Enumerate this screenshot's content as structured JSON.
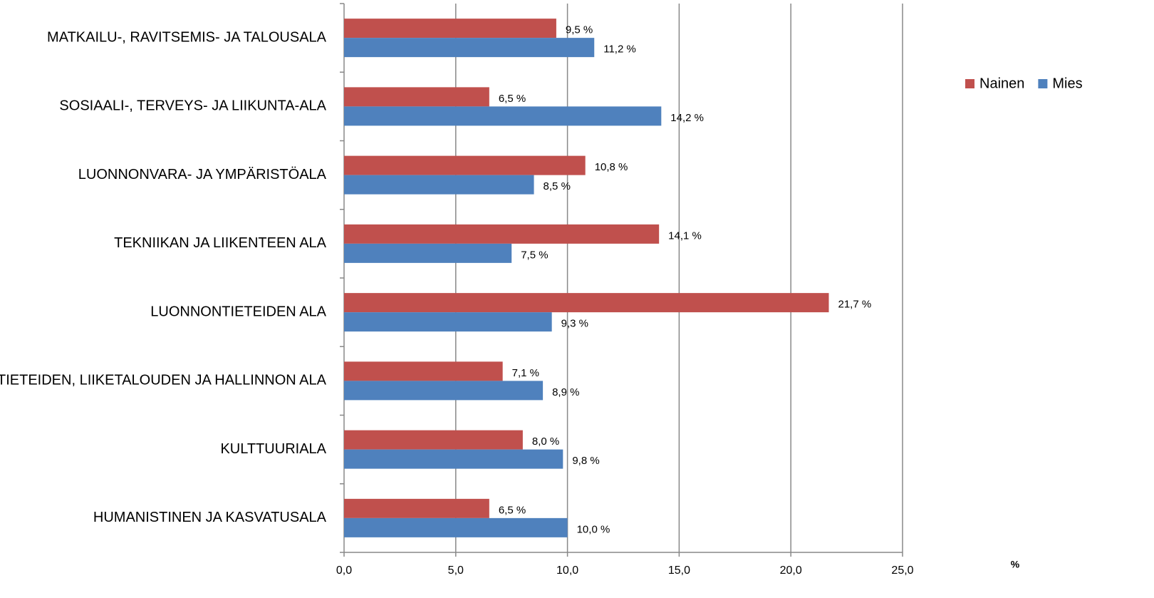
{
  "chart_data": {
    "type": "bar",
    "orientation": "horizontal",
    "categories": [
      "MATKAILU-, RAVITSEMIS- JA TALOUSALA",
      "SOSIAALI-, TERVEYS- JA LIIKUNTA-ALA",
      "LUONNONVARA- JA YMPÄRISTÖALA",
      "TEKNIIKAN JA LIIKENTEEN ALA",
      "LUONNONTIETEIDEN ALA",
      "YHTEISKUNTATIETEIDEN, LIIKETALOUDEN JA HALLINNON ALA",
      "KULTTUURIALA",
      "HUMANISTINEN JA KASVATUSALA"
    ],
    "series": [
      {
        "name": "Nainen",
        "color": "#c0504d",
        "values": [
          9.5,
          6.5,
          10.8,
          14.1,
          21.7,
          7.1,
          8.0,
          6.5
        ],
        "value_labels": [
          "9,5 %",
          "6,5 %",
          "10,8 %",
          "14,1 %",
          "21,7 %",
          "7,1 %",
          "8,0 %",
          "6,5 %"
        ]
      },
      {
        "name": "Mies",
        "color": "#4f81bd",
        "values": [
          11.2,
          14.2,
          8.5,
          7.5,
          9.3,
          8.9,
          9.8,
          10.0
        ],
        "value_labels": [
          "11,2 %",
          "14,2 %",
          "8,5 %",
          "7,5 %",
          "9,3 %",
          "8,9 %",
          "9,8 %",
          "10,0 %"
        ]
      }
    ],
    "xlabel": "%",
    "xlim": [
      0,
      25
    ],
    "xticks": [
      {
        "value": 0,
        "label": "0,0"
      },
      {
        "value": 5,
        "label": "5,0"
      },
      {
        "value": 10,
        "label": "10,0"
      },
      {
        "value": 15,
        "label": "15,0"
      },
      {
        "value": 20,
        "label": "20,0"
      },
      {
        "value": 25,
        "label": "25,0"
      }
    ],
    "grid": true,
    "legend": "right"
  }
}
